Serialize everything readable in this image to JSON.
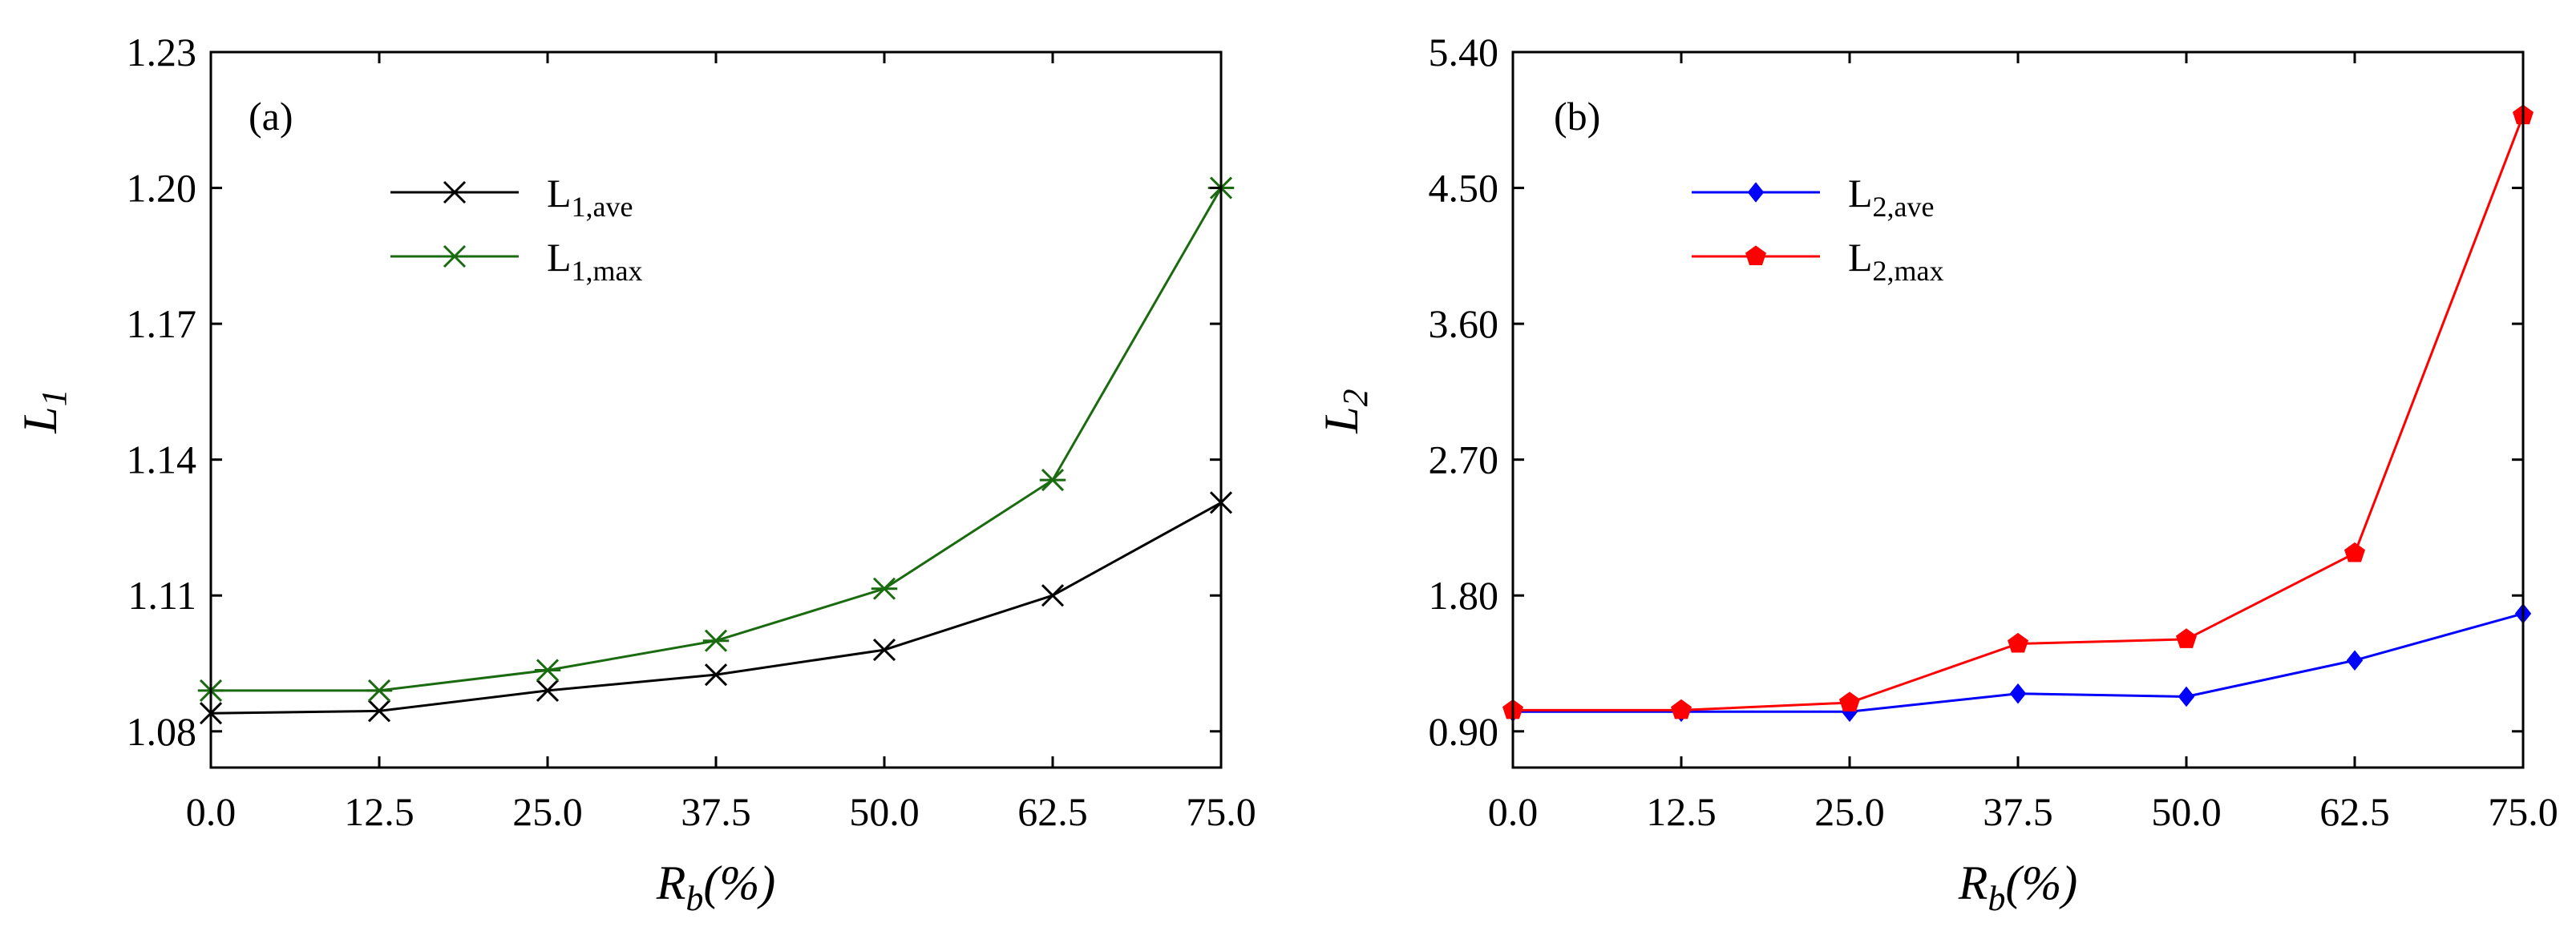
{
  "chart_data": [
    {
      "type": "line",
      "panel_label": "(a)",
      "ylabel": {
        "main": "L",
        "sub": "1"
      },
      "xlabel": {
        "main": "R",
        "sub": "b",
        "suffix": "(%)"
      },
      "x": [
        0.0,
        12.5,
        25.0,
        37.5,
        50.0,
        62.5,
        75.0
      ],
      "x_tick_labels": [
        "0.0",
        "12.5",
        "25.0",
        "37.5",
        "50.0",
        "62.5",
        "75.0"
      ],
      "xlim": [
        0.0,
        75.0
      ],
      "y_ticks": [
        1.08,
        1.11,
        1.14,
        1.17,
        1.2,
        1.23
      ],
      "y_tick_labels": [
        "1.08",
        "1.11",
        "1.14",
        "1.17",
        "1.20",
        "1.23"
      ],
      "ylim": [
        1.072,
        1.23
      ],
      "grid": false,
      "legend_position": "upper-left",
      "series": [
        {
          "name": "L",
          "name_sub": "1,ave",
          "marker": "x",
          "color": "#000000",
          "values": [
            1.084,
            1.0845,
            1.089,
            1.0925,
            1.098,
            1.11,
            1.1305
          ]
        },
        {
          "name": "L",
          "name_sub": "1,max",
          "marker": "asterisk",
          "color": "#1a6b10",
          "values": [
            1.089,
            1.089,
            1.0935,
            1.1,
            1.1115,
            1.1355,
            1.2
          ]
        }
      ]
    },
    {
      "type": "line",
      "panel_label": "(b)",
      "ylabel": {
        "main": "L",
        "sub": "2"
      },
      "xlabel": {
        "main": "R",
        "sub": "b",
        "suffix": "(%)"
      },
      "x": [
        0.0,
        12.5,
        25.0,
        37.5,
        50.0,
        62.5,
        75.0
      ],
      "x_tick_labels": [
        "0.0",
        "12.5",
        "25.0",
        "37.5",
        "50.0",
        "62.5",
        "75.0"
      ],
      "xlim": [
        0.0,
        75.0
      ],
      "y_ticks": [
        0.9,
        1.8,
        2.7,
        3.6,
        4.5,
        5.4
      ],
      "y_tick_labels": [
        "0.90",
        "1.80",
        "2.70",
        "3.60",
        "4.50",
        "5.40"
      ],
      "ylim": [
        0.66,
        5.4
      ],
      "grid": false,
      "legend_position": "upper-left",
      "series": [
        {
          "name": "L",
          "name_sub": "2,ave",
          "marker": "diamond",
          "color": "#0000ff",
          "values": [
            1.03,
            1.03,
            1.03,
            1.15,
            1.13,
            1.37,
            1.68
          ]
        },
        {
          "name": "L",
          "name_sub": "2,max",
          "marker": "pentagon",
          "color": "#ff0000",
          "values": [
            1.04,
            1.04,
            1.09,
            1.48,
            1.51,
            2.08,
            4.98
          ]
        }
      ]
    }
  ]
}
